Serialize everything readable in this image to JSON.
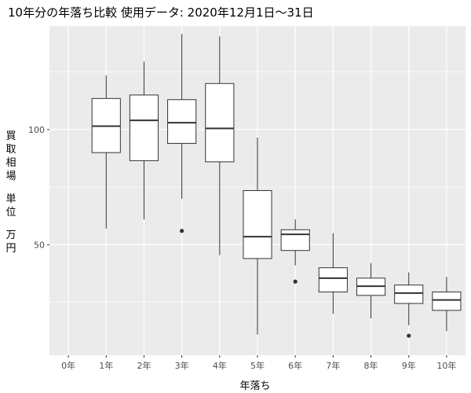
{
  "chart_data": {
    "type": "boxplot",
    "title": "10年分の年落ち比較 使用データ: 2020年12月1日～31日",
    "xlabel": "年落ち",
    "ylabel": "買取相場（単位：万円）",
    "ylabel_lines": [
      "買",
      "取",
      "相",
      "場",
      "",
      "単",
      "位",
      "",
      "万",
      "円"
    ],
    "categories": [
      "0年",
      "1年",
      "2年",
      "3年",
      "4年",
      "5年",
      "6年",
      "7年",
      "8年",
      "9年",
      "10年"
    ],
    "y_ticks": [
      50,
      100
    ],
    "ylim": [
      2,
      145
    ],
    "grid": true,
    "boxes": [
      null,
      {
        "min": 57,
        "q1": 90,
        "median": 101.5,
        "q3": 113.5,
        "max": 123.5,
        "outliers": []
      },
      {
        "min": 61,
        "q1": 86.5,
        "median": 104,
        "q3": 115,
        "max": 129.5,
        "outliers": []
      },
      {
        "min": 70,
        "q1": 94,
        "median": 103,
        "q3": 113,
        "max": 141.5,
        "outliers": [
          56
        ]
      },
      {
        "min": 45.5,
        "q1": 86,
        "median": 100.5,
        "q3": 120,
        "max": 140.5,
        "outliers": []
      },
      {
        "min": 11,
        "q1": 44,
        "median": 53.5,
        "q3": 73.5,
        "max": 96.5,
        "outliers": []
      },
      {
        "min": 41,
        "q1": 47.5,
        "median": 54.5,
        "q3": 56.5,
        "max": 61,
        "outliers": [
          34
        ]
      },
      {
        "min": 20,
        "q1": 29.5,
        "median": 35.5,
        "q3": 40,
        "max": 55,
        "outliers": []
      },
      {
        "min": 18,
        "q1": 28,
        "median": 32,
        "q3": 35.5,
        "max": 42,
        "outliers": []
      },
      {
        "min": 15,
        "q1": 24.5,
        "median": 29,
        "q3": 32.5,
        "max": 38,
        "outliers": [
          10.5
        ]
      },
      {
        "min": 12.5,
        "q1": 21.5,
        "median": 26,
        "q3": 29.5,
        "max": 36,
        "outliers": []
      }
    ]
  },
  "colors": {
    "panel": "#ebebeb",
    "gridline": "#ffffff",
    "box_fill": "#ffffff",
    "box_line": "#333333",
    "text": "#000000",
    "tick_text": "#4d4d4d"
  }
}
